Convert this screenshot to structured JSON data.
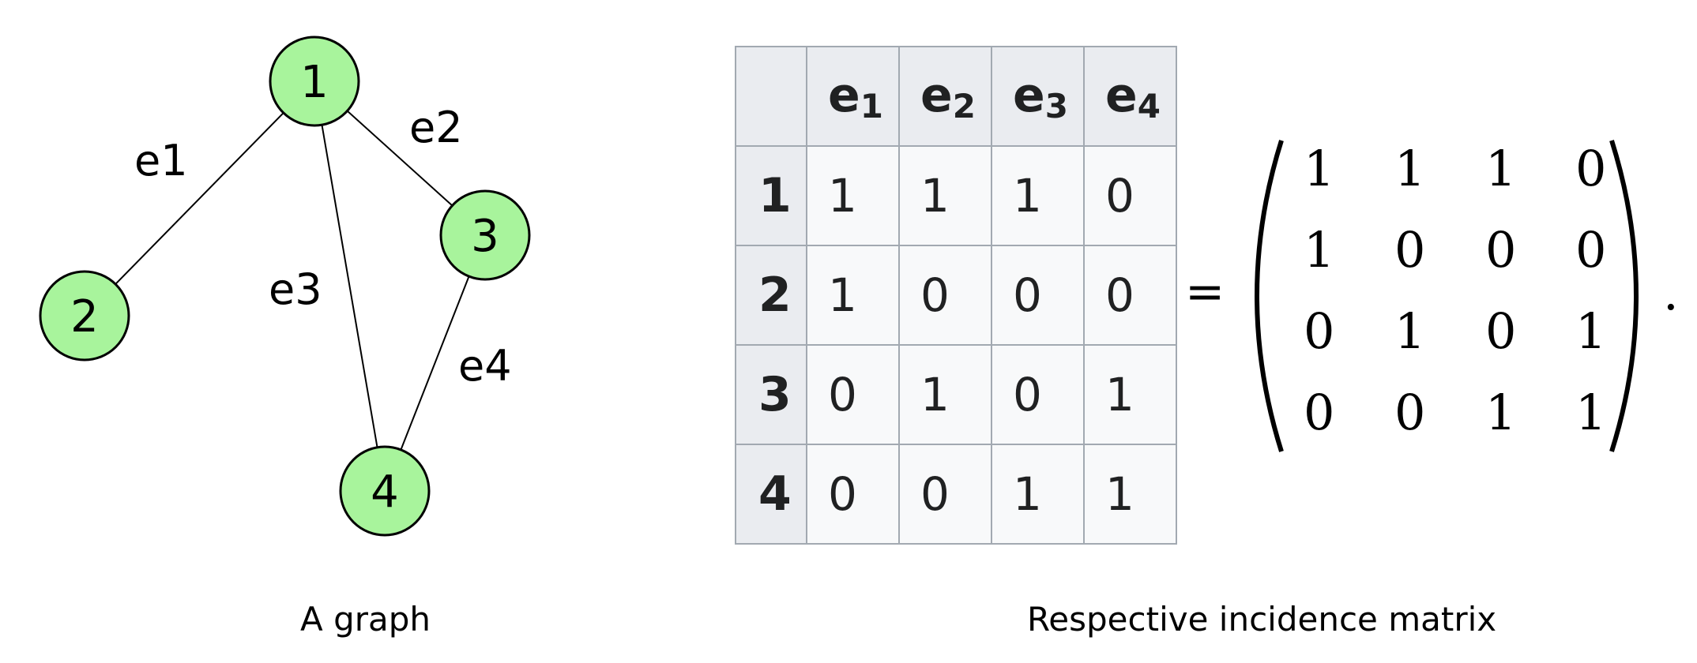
{
  "graph": {
    "nodes": [
      "1",
      "2",
      "3",
      "4"
    ],
    "edges": [
      {
        "label": "e1",
        "from": "1",
        "to": "2"
      },
      {
        "label": "e2",
        "from": "1",
        "to": "3"
      },
      {
        "label": "e3",
        "from": "1",
        "to": "4"
      },
      {
        "label": "e4",
        "from": "3",
        "to": "4"
      }
    ],
    "node_fill": "#a8f49c",
    "caption": "A graph"
  },
  "table": {
    "col_headers": [
      {
        "letter": "e",
        "sub": "1"
      },
      {
        "letter": "e",
        "sub": "2"
      },
      {
        "letter": "e",
        "sub": "3"
      },
      {
        "letter": "e",
        "sub": "4"
      }
    ],
    "rows": [
      {
        "label": "1",
        "values": [
          "1",
          "1",
          "1",
          "0"
        ]
      },
      {
        "label": "2",
        "values": [
          "1",
          "0",
          "0",
          "0"
        ]
      },
      {
        "label": "3",
        "values": [
          "0",
          "1",
          "0",
          "1"
        ]
      },
      {
        "label": "4",
        "values": [
          "0",
          "0",
          "1",
          "1"
        ]
      }
    ],
    "header_bg": "#eaecf0",
    "cell_bg": "#f8f9fa",
    "border_color": "#a2a9b1"
  },
  "equation": {
    "equals": "=",
    "matrix": [
      [
        "1",
        "1",
        "1",
        "0"
      ],
      [
        "1",
        "0",
        "0",
        "0"
      ],
      [
        "0",
        "1",
        "0",
        "1"
      ],
      [
        "0",
        "0",
        "1",
        "1"
      ]
    ],
    "period": "."
  },
  "caption_matrix": "Respective incidence matrix"
}
